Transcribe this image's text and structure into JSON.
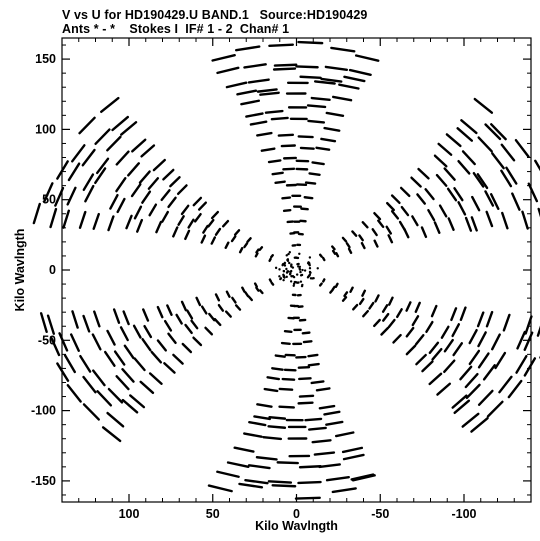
{
  "header": {
    "title_line1": "V vs U for HD190429.U BAND.1   Source:HD190429",
    "title_line2": "Ants * - *    Stokes I  IF# 1 - 2  Chan# 1"
  },
  "chart_data": {
    "type": "scatter",
    "xlabel": "Kilo Wavlngth",
    "ylabel": "Kilo Wavlngth",
    "xlim": [
      140,
      -140
    ],
    "ylim": [
      -165,
      165
    ],
    "x_inverted": true,
    "x_ticks": [
      100,
      50,
      0,
      -50,
      -100
    ],
    "y_ticks": [
      150,
      100,
      50,
      0,
      -50,
      -100,
      -150
    ],
    "grid": false,
    "legend": "none",
    "marker_color": "#000000",
    "description_arms_deg": [
      90,
      30,
      -30,
      -90,
      -150,
      150
    ],
    "arm_max_radius": 158,
    "num_arm_rows": 18,
    "track_length_deg": 5
  }
}
